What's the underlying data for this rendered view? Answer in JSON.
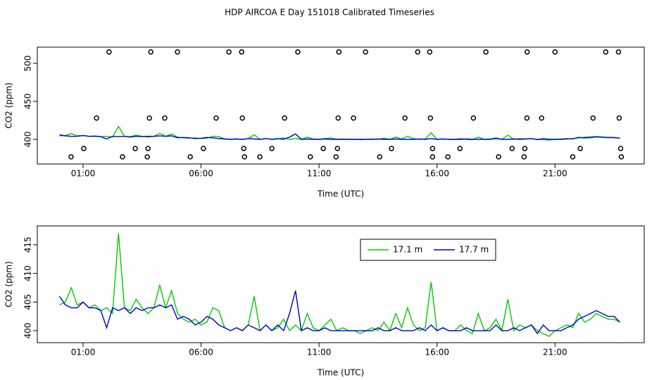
{
  "title": "HDP AIRCOA E  Day 151018  Calibrated Timeseries",
  "chart_data": [
    {
      "type": "line",
      "xlabel": "Time (UTC)",
      "ylabel": "CO2 (ppm)",
      "xlim": [
        -0.94,
        24.78
      ],
      "ylim": [
        367.6,
        521.3
      ],
      "xticks": [
        {
          "value": 1,
          "label": "01:00"
        },
        {
          "value": 6,
          "label": "06:00"
        },
        {
          "value": 11,
          "label": "11:00"
        },
        {
          "value": 16,
          "label": "16:00"
        },
        {
          "value": 21,
          "label": "21:00"
        }
      ],
      "yticks": [
        400,
        450,
        500
      ],
      "x": [
        0,
        0.25,
        0.5,
        0.75,
        1,
        1.25,
        1.5,
        1.75,
        2,
        2.25,
        2.5,
        2.75,
        3,
        3.25,
        3.5,
        3.75,
        4,
        4.25,
        4.5,
        4.75,
        5,
        5.25,
        5.5,
        5.75,
        6,
        6.25,
        6.5,
        6.75,
        7,
        7.25,
        7.5,
        7.75,
        8,
        8.25,
        8.5,
        8.75,
        9,
        9.25,
        9.5,
        9.75,
        10,
        10.25,
        10.5,
        10.75,
        11,
        11.25,
        11.5,
        11.75,
        12,
        12.25,
        12.5,
        12.75,
        13,
        13.25,
        13.5,
        13.75,
        14,
        14.25,
        14.5,
        14.75,
        15,
        15.25,
        15.5,
        15.75,
        16,
        16.25,
        16.5,
        16.75,
        17,
        17.25,
        17.5,
        17.75,
        18,
        18.25,
        18.5,
        18.75,
        19,
        19.25,
        19.5,
        19.75,
        20,
        20.25,
        20.5,
        20.75,
        21,
        21.25,
        21.5,
        21.75,
        22,
        22.25,
        22.5,
        22.75,
        23,
        23.25,
        23.5,
        23.75
      ],
      "series": [
        {
          "color": "#00cc00",
          "values": [
            404.5,
            405,
            407.5,
            404.5,
            405,
            404,
            404.5,
            403.5,
            404,
            403,
            417,
            404,
            403.5,
            405.5,
            404,
            403,
            404,
            408,
            404,
            407,
            403,
            402,
            401.5,
            402,
            401,
            401.5,
            404,
            403.5,
            400.5,
            400,
            400.5,
            400,
            401,
            406,
            400,
            401,
            400,
            400.5,
            402,
            400,
            401,
            400,
            403,
            400.5,
            400,
            401,
            402,
            400,
            400.5,
            400,
            400,
            399.5,
            400,
            400.5,
            400,
            401.5,
            400,
            403,
            400.5,
            404,
            401,
            400,
            400.5,
            408.5,
            400,
            400.5,
            400,
            400,
            401,
            400,
            399.5,
            403,
            400,
            400.5,
            402,
            400,
            405.5,
            400,
            401,
            400.5,
            401,
            400,
            399.5,
            399,
            400,
            400.5,
            401,
            400.5,
            403,
            401.5,
            402,
            403,
            402.5,
            402,
            402,
            401.5
          ]
        },
        {
          "color": "#0000cc",
          "values": [
            406,
            404.5,
            404,
            404,
            405,
            404,
            404,
            403.5,
            400.5,
            404,
            403.5,
            404,
            403,
            404,
            403.5,
            404,
            404,
            404.5,
            404,
            404.5,
            402,
            402.5,
            402,
            401,
            401.5,
            402.5,
            402,
            401,
            400.5,
            400,
            400.5,
            400,
            401,
            400.5,
            400,
            401,
            400,
            401,
            400,
            403,
            407,
            400,
            400.5,
            400,
            400,
            400.5,
            400,
            400,
            400,
            400,
            400,
            400,
            400,
            400,
            400.5,
            400,
            400,
            400.5,
            400,
            400,
            400,
            400.5,
            400,
            401,
            400,
            400.5,
            400,
            400,
            400,
            400.5,
            400,
            400,
            400,
            400,
            401,
            400,
            400,
            400.5,
            400,
            400.5,
            401,
            399.5,
            401,
            400,
            400,
            400,
            400.5,
            401,
            402,
            402.5,
            403,
            403.5,
            403,
            402.5,
            402.5,
            401.5
          ]
        },
        {
          "type": "scatter",
          "color": "#000000",
          "x": [
            2.1,
            3.87,
            5.0,
            7.18,
            7.72,
            10.1,
            11.84,
            12.97,
            15.18,
            15.69,
            18.07,
            19.82,
            21.0,
            23.15,
            23.69,
            1.57,
            3.81,
            4.46,
            6.64,
            7.75,
            9.54,
            11.81,
            12.46,
            14.64,
            15.72,
            17.54,
            19.81,
            20.43,
            22.61,
            23.72,
            1.03,
            3.21,
            3.75,
            6.1,
            7.81,
            9.0,
            11.18,
            11.78,
            14.07,
            15.81,
            16.97,
            19.18,
            19.72,
            22.07,
            23.78,
            0.49,
            2.67,
            3.72,
            5.54,
            7.84,
            8.49,
            10.63,
            11.72,
            13.57,
            15.81,
            16.46,
            18.61,
            19.69,
            21.75,
            23.81
          ],
          "values": [
            515,
            515,
            515,
            515,
            515,
            515,
            515,
            515,
            515,
            515,
            515,
            515,
            515,
            515,
            515,
            428,
            428,
            428,
            428,
            428,
            428,
            428,
            428,
            428,
            428,
            428,
            428,
            428,
            428,
            428,
            388,
            388,
            388,
            388,
            388,
            388,
            388,
            388,
            388,
            388,
            388,
            388,
            388,
            388,
            388,
            377,
            377,
            377,
            377,
            377,
            377,
            377,
            377,
            377,
            377,
            377,
            377,
            377,
            377,
            377
          ]
        }
      ]
    },
    {
      "type": "line",
      "xlabel": "Time (UTC)",
      "ylabel": "CO2 (ppm)",
      "xlim": [
        -0.94,
        24.78
      ],
      "ylim": [
        397.9,
        418.3
      ],
      "xticks": [
        {
          "value": 1,
          "label": "01:00"
        },
        {
          "value": 6,
          "label": "06:00"
        },
        {
          "value": 11,
          "label": "11:00"
        },
        {
          "value": 16,
          "label": "16:00"
        },
        {
          "value": 21,
          "label": "21:00"
        }
      ],
      "yticks": [
        400,
        405,
        410,
        415
      ],
      "legend": "top",
      "x": [
        0,
        0.25,
        0.5,
        0.75,
        1,
        1.25,
        1.5,
        1.75,
        2,
        2.25,
        2.5,
        2.75,
        3,
        3.25,
        3.5,
        3.75,
        4,
        4.25,
        4.5,
        4.75,
        5,
        5.25,
        5.5,
        5.75,
        6,
        6.25,
        6.5,
        6.75,
        7,
        7.25,
        7.5,
        7.75,
        8,
        8.25,
        8.5,
        8.75,
        9,
        9.25,
        9.5,
        9.75,
        10,
        10.25,
        10.5,
        10.75,
        11,
        11.25,
        11.5,
        11.75,
        12,
        12.25,
        12.5,
        12.75,
        13,
        13.25,
        13.5,
        13.75,
        14,
        14.25,
        14.5,
        14.75,
        15,
        15.25,
        15.5,
        15.75,
        16,
        16.25,
        16.5,
        16.75,
        17,
        17.25,
        17.5,
        17.75,
        18,
        18.25,
        18.5,
        18.75,
        19,
        19.25,
        19.5,
        19.75,
        20,
        20.25,
        20.5,
        20.75,
        21,
        21.25,
        21.5,
        21.75,
        22,
        22.25,
        22.5,
        22.75,
        23,
        23.25,
        23.5,
        23.75
      ],
      "series": [
        {
          "name": "17.1 m",
          "color": "#00cc00",
          "values": [
            404.5,
            405,
            407.5,
            404.5,
            405,
            404,
            404.5,
            403.5,
            404,
            403,
            417,
            404,
            403.5,
            405.5,
            404,
            403,
            404,
            408,
            404,
            407,
            403,
            402,
            401.5,
            402,
            401,
            401.5,
            404,
            403.5,
            400.5,
            400,
            400.5,
            400,
            401,
            406,
            400,
            401,
            400,
            400.5,
            402,
            400,
            401,
            400,
            403,
            400.5,
            400,
            401,
            402,
            400,
            400.5,
            400,
            400,
            399.5,
            400,
            400.5,
            400,
            401.5,
            400,
            403,
            400.5,
            404,
            401,
            400,
            400.5,
            408.5,
            400,
            400.5,
            400,
            400,
            401,
            400,
            399.5,
            403,
            400,
            400.5,
            402,
            400,
            405.5,
            400,
            401,
            400.5,
            401,
            400,
            399.5,
            399,
            400,
            400.5,
            401,
            400.5,
            403,
            401.5,
            402,
            403,
            402.5,
            402,
            402,
            401.5
          ]
        },
        {
          "name": "17.7 m",
          "color": "#0000cc",
          "values": [
            406,
            404.5,
            404,
            404,
            405,
            404,
            404,
            403.5,
            400.5,
            404,
            403.5,
            404,
            403,
            404,
            403.5,
            404,
            404,
            404.5,
            404,
            404.5,
            402,
            402.5,
            402,
            401,
            401.5,
            402.5,
            402,
            401,
            400.5,
            400,
            400.5,
            400,
            401,
            400.5,
            400,
            401,
            400,
            401,
            400,
            403,
            407,
            400,
            400.5,
            400,
            400,
            400.5,
            400,
            400,
            400,
            400,
            400,
            400,
            400,
            400,
            400.5,
            400,
            400,
            400.5,
            400,
            400,
            400,
            400.5,
            400,
            401,
            400,
            400.5,
            400,
            400,
            400,
            400.5,
            400,
            400,
            400,
            400,
            401,
            400,
            400,
            400.5,
            400,
            400.5,
            401,
            399.5,
            401,
            400,
            400,
            400,
            400.5,
            401,
            402,
            402.5,
            403,
            403.5,
            403,
            402.5,
            402.5,
            401.5
          ]
        }
      ]
    }
  ]
}
